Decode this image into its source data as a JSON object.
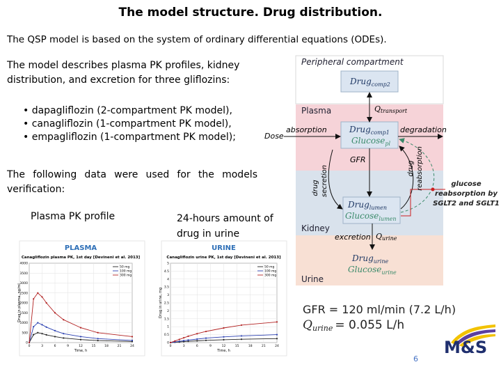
{
  "title": "The model structure. Drug distribution.",
  "intro": "The QSP model is based on the system of ordinary differential equations (ODEs).",
  "description": "The model describes plasma PK profiles, kidney distribution, and excretion for three gliflozins:",
  "drugs": [
    "• dapagliflozin (2-compartment PK model),",
    "• canagliflozin (1-compartment PK model),",
    "• empagliflozin (1-compartment PK model);"
  ],
  "verification": "The following data were used for the models verification:",
  "data_labels": [
    "Plasma PK profile",
    "24-hours amount of drug in urine"
  ],
  "charts": [
    {
      "type": "line",
      "header": "PLASMA",
      "title": "Canagliflozin plasma PK, 1st day [Devineni et al. 2013]",
      "xlabel": "Time, h",
      "ylabel": "Drug in plasma, ng/ml",
      "x": [
        0,
        1,
        2,
        3,
        4,
        6,
        8,
        12,
        16,
        24
      ],
      "xlim": [
        0,
        24
      ],
      "xticks": [
        0,
        3,
        6,
        9,
        12,
        15,
        18,
        21,
        24
      ],
      "ylim": [
        0,
        4000
      ],
      "yticks": [
        0,
        500,
        1000,
        1500,
        2000,
        2500,
        3000,
        3500,
        4000
      ],
      "grid": true,
      "series": [
        {
          "name": "50 mg",
          "color": "#222222",
          "values": [
            0,
            400,
            500,
            450,
            390,
            300,
            230,
            150,
            100,
            55
          ]
        },
        {
          "name": "100 mg",
          "color": "#2a3fb0",
          "values": [
            0,
            800,
            1000,
            900,
            780,
            600,
            450,
            300,
            200,
            110
          ]
        },
        {
          "name": "300 mg",
          "color": "#b22222",
          "values": [
            0,
            2200,
            2500,
            2300,
            2000,
            1500,
            1150,
            750,
            500,
            300
          ]
        }
      ]
    },
    {
      "type": "line",
      "header": "URINE",
      "title": "Canagliflozin urine PK, 1st day [Devineni et al. 2013]",
      "xlabel": "Time, h",
      "ylabel": "Drug in urine, mg",
      "x": [
        0,
        1,
        2,
        3,
        4,
        6,
        8,
        12,
        16,
        24
      ],
      "xlim": [
        0,
        24
      ],
      "xticks": [
        0,
        3,
        6,
        9,
        12,
        15,
        18,
        21,
        24
      ],
      "ylim": [
        0,
        5
      ],
      "yticks": [
        0,
        0.5,
        1,
        1.5,
        2,
        2.5,
        3,
        3.5,
        4,
        4.5,
        5
      ],
      "grid": true,
      "series": [
        {
          "name": "50 mg",
          "color": "#222222",
          "values": [
            0,
            0.02,
            0.04,
            0.06,
            0.08,
            0.11,
            0.14,
            0.18,
            0.21,
            0.25
          ]
        },
        {
          "name": "100 mg",
          "color": "#2a3fb0",
          "values": [
            0,
            0.04,
            0.08,
            0.12,
            0.16,
            0.22,
            0.28,
            0.36,
            0.42,
            0.5
          ]
        },
        {
          "name": "300 mg",
          "color": "#b22222",
          "values": [
            0,
            0.1,
            0.2,
            0.3,
            0.4,
            0.56,
            0.7,
            0.92,
            1.1,
            1.3
          ]
        }
      ]
    }
  ],
  "diagram": {
    "compartments": [
      "Peripheral compartment",
      "Plasma",
      "Kidney",
      "Urine"
    ],
    "nodes": [
      {
        "drug": "Drug",
        "drug_sub": "comp2"
      },
      {
        "drug": "Drug",
        "drug_sub": "comp1",
        "glucose": "Glucose",
        "glucose_sub": "pl"
      },
      {
        "drug": "Drug",
        "drug_sub": "lumen",
        "glucose": "Glucose",
        "glucose_sub": "lumen"
      },
      {
        "drug": "Drug",
        "drug_sub": "urine",
        "glucose": "Glucose",
        "glucose_sub": "urine"
      }
    ],
    "q_transport": {
      "symbol": "Q",
      "sub": "transport"
    },
    "q_urine": {
      "symbol": "Q",
      "sub": "urine"
    },
    "dose": "Dose",
    "absorption": "absorption",
    "degradation": "degradation",
    "gfr": "GFR",
    "secretion": [
      "drug",
      "secretion"
    ],
    "reabsorption": [
      "drug",
      "reabsorption"
    ],
    "excretion": "excretion",
    "glucose_note": [
      "glucose",
      "reabsorption by",
      "SGLT2 and SGLT1"
    ]
  },
  "formulas": {
    "gfr": "GFR = 120 ml/min (7.2 L/h)",
    "q_symbol": "Q",
    "q_sub": "urine",
    "q_rest": "= 0.055 L/h"
  },
  "page_number": "6",
  "logo": "M&S"
}
